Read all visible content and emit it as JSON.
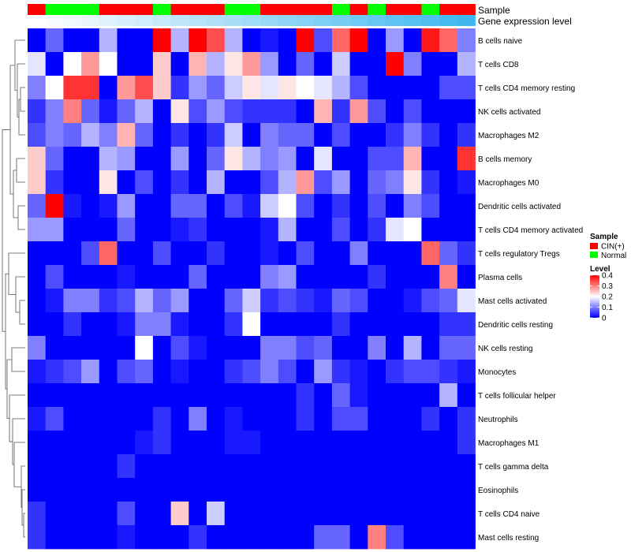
{
  "chart_data": {
    "type": "heatmap",
    "title": "",
    "xlabel": "",
    "ylabel": "",
    "annotation_tracks": [
      {
        "name": "Sample",
        "values": [
          "CIN(+)",
          "Normal",
          "Normal",
          "Normal",
          "CIN(+)",
          "CIN(+)",
          "CIN(+)",
          "Normal",
          "CIN(+)",
          "CIN(+)",
          "CIN(+)",
          "Normal",
          "Normal",
          "CIN(+)",
          "CIN(+)",
          "CIN(+)",
          "CIN(+)",
          "Normal",
          "CIN(+)",
          "Normal",
          "CIN(+)",
          "CIN(+)",
          "Normal",
          "CIN(+)",
          "CIN(+)"
        ]
      },
      {
        "name": "Gene expression level",
        "values": [
          0.0,
          0.02,
          0.04,
          0.06,
          0.08,
          0.1,
          0.12,
          0.14,
          0.16,
          0.18,
          0.2,
          0.22,
          0.24,
          0.26,
          0.28,
          0.3,
          0.32,
          0.34,
          0.36,
          0.38,
          0.4,
          0.42,
          0.44,
          0.46,
          0.48
        ]
      }
    ],
    "rows": [
      "B cells naive",
      "T cells CD8",
      "T cells CD4 memory resting",
      "NK cells activated",
      "Macrophages M2",
      "B cells memory",
      "Macrophages M0",
      "Dendritic cells activated",
      "T cells CD4 memory activated",
      "T cells regulatory  Tregs",
      "Plasma cells",
      "Mast cells activated",
      "Dendritic cells resting",
      "NK cells resting",
      "Monocytes",
      "T cells follicular helper",
      "Neutrophils",
      "Macrophages M1",
      "T cells gamma delta",
      "Eosinophils",
      "T cells CD4 naive",
      "Mast cells resting"
    ],
    "values": [
      [
        0.0,
        0.08,
        0.0,
        0.0,
        0.14,
        0.0,
        0.0,
        0.4,
        0.14,
        0.4,
        0.34,
        0.14,
        0.0,
        0.02,
        0.0,
        0.4,
        0.06,
        0.32,
        0.4,
        0.0,
        0.12,
        0.0,
        0.38,
        0.32,
        0.1
      ],
      [
        0.18,
        0.0,
        0.2,
        0.28,
        0.2,
        0.0,
        0.0,
        0.24,
        0.0,
        0.26,
        0.14,
        0.22,
        0.28,
        0.12,
        0.0,
        0.08,
        0.0,
        0.16,
        0.0,
        0.0,
        0.4,
        0.1,
        0.0,
        0.0,
        0.14
      ],
      [
        0.1,
        0.2,
        0.36,
        0.36,
        0.0,
        0.28,
        0.34,
        0.24,
        0.04,
        0.12,
        0.08,
        0.16,
        0.22,
        0.18,
        0.22,
        0.2,
        0.18,
        0.14,
        0.06,
        0.0,
        0.0,
        0.0,
        0.0,
        0.06,
        0.06
      ],
      [
        0.04,
        0.1,
        0.3,
        0.08,
        0.02,
        0.08,
        0.14,
        0.0,
        0.22,
        0.06,
        0.12,
        0.06,
        0.04,
        0.04,
        0.04,
        0.0,
        0.26,
        0.04,
        0.28,
        0.06,
        0.0,
        0.06,
        0.0,
        0.0,
        0.0
      ],
      [
        0.06,
        0.1,
        0.08,
        0.14,
        0.1,
        0.26,
        0.08,
        0.0,
        0.04,
        0.0,
        0.04,
        0.16,
        0.0,
        0.1,
        0.08,
        0.08,
        0.0,
        0.06,
        0.0,
        0.0,
        0.04,
        0.1,
        0.04,
        0.0,
        0.04
      ],
      [
        0.24,
        0.08,
        0.0,
        0.0,
        0.14,
        0.12,
        0.0,
        0.0,
        0.12,
        0.0,
        0.08,
        0.22,
        0.14,
        0.1,
        0.12,
        0.0,
        0.18,
        0.0,
        0.0,
        0.06,
        0.06,
        0.26,
        0.0,
        0.0,
        0.36
      ],
      [
        0.24,
        0.04,
        0.0,
        0.0,
        0.22,
        0.0,
        0.06,
        0.0,
        0.04,
        0.0,
        0.14,
        0.0,
        0.0,
        0.06,
        0.14,
        0.28,
        0.06,
        0.12,
        0.0,
        0.08,
        0.1,
        0.22,
        0.04,
        0.0,
        0.02
      ],
      [
        0.08,
        0.4,
        0.02,
        0.0,
        0.02,
        0.12,
        0.0,
        0.0,
        0.08,
        0.08,
        0.0,
        0.06,
        0.02,
        0.16,
        0.2,
        0.06,
        0.0,
        0.04,
        0.0,
        0.06,
        0.0,
        0.1,
        0.06,
        0.0,
        0.0
      ],
      [
        0.12,
        0.12,
        0.0,
        0.0,
        0.0,
        0.08,
        0.0,
        0.0,
        0.02,
        0.04,
        0.0,
        0.0,
        0.0,
        0.02,
        0.14,
        0.0,
        0.0,
        0.06,
        0.0,
        0.04,
        0.18,
        0.2,
        0.0,
        0.0,
        0.0
      ],
      [
        0.0,
        0.0,
        0.0,
        0.06,
        0.32,
        0.0,
        0.0,
        0.06,
        0.0,
        0.0,
        0.04,
        0.0,
        0.0,
        0.02,
        0.0,
        0.06,
        0.0,
        0.0,
        0.1,
        0.0,
        0.0,
        0.0,
        0.32,
        0.08,
        0.04
      ],
      [
        0.0,
        0.06,
        0.0,
        0.0,
        0.0,
        0.02,
        0.0,
        0.0,
        0.0,
        0.08,
        0.0,
        0.0,
        0.0,
        0.1,
        0.12,
        0.0,
        0.0,
        0.0,
        0.0,
        0.04,
        0.0,
        0.0,
        0.0,
        0.3,
        0.0
      ],
      [
        0.0,
        0.02,
        0.1,
        0.1,
        0.04,
        0.06,
        0.14,
        0.08,
        0.12,
        0.0,
        0.0,
        0.08,
        0.16,
        0.04,
        0.06,
        0.04,
        0.02,
        0.08,
        0.06,
        0.0,
        0.0,
        0.02,
        0.06,
        0.08,
        0.18
      ],
      [
        0.0,
        0.0,
        0.04,
        0.0,
        0.0,
        0.02,
        0.1,
        0.1,
        0.02,
        0.0,
        0.0,
        0.04,
        0.2,
        0.0,
        0.0,
        0.0,
        0.0,
        0.04,
        0.0,
        0.0,
        0.0,
        0.0,
        0.0,
        0.04,
        0.04
      ],
      [
        0.1,
        0.0,
        0.0,
        0.0,
        0.0,
        0.0,
        0.2,
        0.0,
        0.06,
        0.02,
        0.0,
        0.0,
        0.0,
        0.1,
        0.1,
        0.06,
        0.08,
        0.0,
        0.0,
        0.1,
        0.0,
        0.14,
        0.0,
        0.08,
        0.08
      ],
      [
        0.02,
        0.04,
        0.06,
        0.12,
        0.0,
        0.06,
        0.08,
        0.0,
        0.02,
        0.0,
        0.0,
        0.04,
        0.06,
        0.1,
        0.06,
        0.0,
        0.12,
        0.04,
        0.02,
        0.0,
        0.04,
        0.06,
        0.06,
        0.04,
        0.02
      ],
      [
        0.0,
        0.0,
        0.0,
        0.0,
        0.0,
        0.0,
        0.0,
        0.0,
        0.0,
        0.0,
        0.0,
        0.0,
        0.0,
        0.0,
        0.0,
        0.04,
        0.0,
        0.08,
        0.02,
        0.0,
        0.0,
        0.0,
        0.0,
        0.14,
        0.0
      ],
      [
        0.02,
        0.06,
        0.0,
        0.0,
        0.0,
        0.0,
        0.0,
        0.04,
        0.0,
        0.1,
        0.0,
        0.02,
        0.0,
        0.0,
        0.0,
        0.04,
        0.0,
        0.06,
        0.06,
        0.0,
        0.0,
        0.0,
        0.04,
        0.0,
        0.04
      ],
      [
        0.0,
        0.0,
        0.0,
        0.0,
        0.0,
        0.0,
        0.02,
        0.04,
        0.0,
        0.0,
        0.0,
        0.02,
        0.02,
        0.0,
        0.0,
        0.0,
        0.0,
        0.0,
        0.0,
        0.0,
        0.0,
        0.0,
        0.0,
        0.0,
        0.04
      ],
      [
        0.0,
        0.0,
        0.0,
        0.0,
        0.0,
        0.04,
        0.0,
        0.0,
        0.0,
        0.0,
        0.0,
        0.0,
        0.0,
        0.0,
        0.0,
        0.0,
        0.0,
        0.0,
        0.0,
        0.0,
        0.0,
        0.0,
        0.0,
        0.0,
        0.0
      ],
      [
        0.0,
        0.0,
        0.0,
        0.0,
        0.0,
        0.0,
        0.0,
        0.0,
        0.0,
        0.0,
        0.0,
        0.0,
        0.0,
        0.0,
        0.0,
        0.0,
        0.0,
        0.0,
        0.0,
        0.0,
        0.0,
        0.0,
        0.0,
        0.0,
        0.0
      ],
      [
        0.04,
        0.0,
        0.0,
        0.0,
        0.0,
        0.06,
        0.0,
        0.0,
        0.24,
        0.0,
        0.16,
        0.0,
        0.0,
        0.0,
        0.0,
        0.0,
        0.0,
        0.0,
        0.0,
        0.0,
        0.0,
        0.0,
        0.0,
        0.0,
        0.0
      ],
      [
        0.04,
        0.0,
        0.0,
        0.0,
        0.0,
        0.02,
        0.0,
        0.0,
        0.0,
        0.04,
        0.0,
        0.0,
        0.0,
        0.0,
        0.0,
        0.0,
        0.08,
        0.08,
        0.0,
        0.3,
        0.06,
        0.0,
        0.0,
        0.0,
        0.0
      ]
    ],
    "legend": {
      "placement": "right",
      "sample": {
        "title": "Sample",
        "entries": [
          {
            "label": "CIN(+)",
            "color": "#ff0000"
          },
          {
            "label": "Normal",
            "color": "#00ff00"
          }
        ]
      },
      "level": {
        "title": "Level",
        "range": [
          0,
          0.4
        ],
        "ticks": [
          {
            "value": 0.4,
            "label": "0.4"
          },
          {
            "value": 0.3,
            "label": "0.3"
          },
          {
            "value": 0.2,
            "label": "0.2"
          },
          {
            "value": 0.1,
            "label": "0.1"
          },
          {
            "value": 0,
            "label": "0"
          }
        ]
      }
    },
    "colors": {
      "low": "#0000ff",
      "mid": "#ffffff",
      "high": "#ff0000",
      "expr_low": "#ffffff",
      "expr_high": "#3fb8f0",
      "dendrogram": "#555555"
    }
  }
}
